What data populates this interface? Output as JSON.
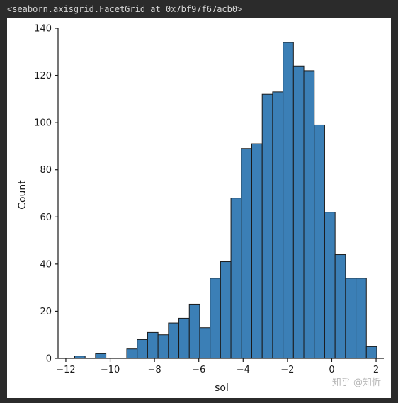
{
  "output": {
    "repr_text": "<seaborn.axisgrid.FacetGrid at 0x7bf97f67acb0>"
  },
  "watermark": "知乎 @知忻",
  "colors": {
    "bar_fill": "#3b7fb6",
    "bar_edge": "#1a1a1a",
    "axis": "#1a1a1a",
    "background": "#ffffff"
  },
  "chart_data": {
    "type": "bar",
    "title": "",
    "xlabel": "sol",
    "ylabel": "Count",
    "xlim": [
      -12.35,
      2.35
    ],
    "ylim": [
      0,
      140
    ],
    "xticks": [
      -12,
      -10,
      -8,
      -6,
      -4,
      -2,
      0,
      2
    ],
    "xtick_labels": [
      "−12",
      "−10",
      "−8",
      "−6",
      "−4",
      "−2",
      "0",
      "2"
    ],
    "yticks": [
      0,
      20,
      40,
      60,
      80,
      100,
      120,
      140
    ],
    "ytick_labels": [
      "0",
      "20",
      "40",
      "60",
      "80",
      "100",
      "120",
      "140"
    ],
    "grid": false,
    "bin_width": 0.47,
    "bins": [
      {
        "x_start": -11.6,
        "count": 1
      },
      {
        "x_start": -11.13,
        "count": 0
      },
      {
        "x_start": -10.66,
        "count": 2
      },
      {
        "x_start": -10.19,
        "count": 0
      },
      {
        "x_start": -9.72,
        "count": 0
      },
      {
        "x_start": -9.25,
        "count": 4
      },
      {
        "x_start": -8.78,
        "count": 8
      },
      {
        "x_start": -8.31,
        "count": 11
      },
      {
        "x_start": -7.84,
        "count": 10
      },
      {
        "x_start": -7.37,
        "count": 15
      },
      {
        "x_start": -6.9,
        "count": 17
      },
      {
        "x_start": -6.43,
        "count": 23
      },
      {
        "x_start": -5.96,
        "count": 13
      },
      {
        "x_start": -5.49,
        "count": 34
      },
      {
        "x_start": -5.02,
        "count": 41
      },
      {
        "x_start": -4.55,
        "count": 68
      },
      {
        "x_start": -4.08,
        "count": 89
      },
      {
        "x_start": -3.61,
        "count": 91
      },
      {
        "x_start": -3.14,
        "count": 112
      },
      {
        "x_start": -2.67,
        "count": 113
      },
      {
        "x_start": -2.2,
        "count": 134
      },
      {
        "x_start": -1.73,
        "count": 124
      },
      {
        "x_start": -1.26,
        "count": 122
      },
      {
        "x_start": -0.79,
        "count": 99
      },
      {
        "x_start": -0.32,
        "count": 62
      },
      {
        "x_start": 0.15,
        "count": 44
      },
      {
        "x_start": 0.62,
        "count": 34
      },
      {
        "x_start": 1.09,
        "count": 34
      },
      {
        "x_start": 1.56,
        "count": 5
      }
    ]
  }
}
